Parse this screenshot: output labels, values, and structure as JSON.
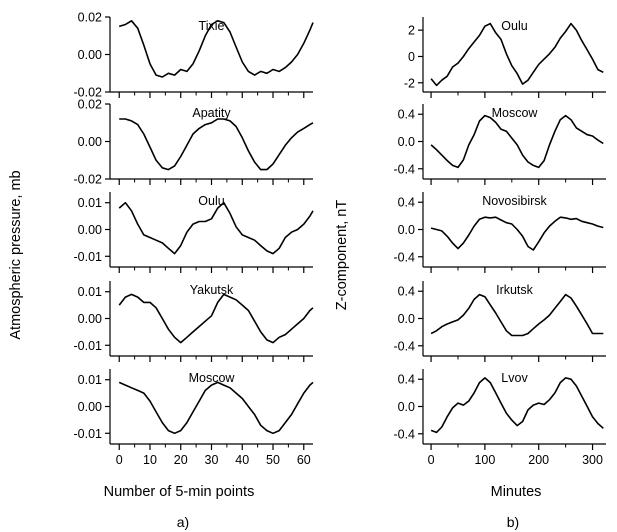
{
  "figure": {
    "left_ylabel": "Atmospheric pressure, mb",
    "left_xlabel": "Number of 5-min points",
    "left_panel_label": "a)",
    "right_ylabel": "Z-component, nT",
    "right_xlabel": "Minutes",
    "right_panel_label": "b)"
  },
  "chart_data": [
    {
      "type": "line",
      "group": "a",
      "station": "Tixie",
      "xlim": [
        -3,
        63
      ],
      "ylim": [
        -0.02,
        0.02
      ],
      "xticks": [
        0,
        10,
        20,
        30,
        40,
        50,
        60
      ],
      "yticks": [
        {
          "v": 0.02,
          "l": "0.02"
        },
        {
          "v": 0.0,
          "l": "0.00"
        },
        {
          "v": -0.02,
          "l": "-0.02"
        }
      ],
      "x": [
        0,
        2,
        4,
        6,
        8,
        10,
        12,
        14,
        16,
        18,
        20,
        22,
        24,
        26,
        28,
        30,
        32,
        34,
        36,
        38,
        40,
        42,
        44,
        46,
        48,
        50,
        52,
        54,
        56,
        58,
        60,
        62,
        63
      ],
      "y": [
        0.015,
        0.016,
        0.018,
        0.014,
        0.005,
        -0.005,
        -0.011,
        -0.012,
        -0.01,
        -0.011,
        -0.008,
        -0.009,
        -0.005,
        0.002,
        0.01,
        0.016,
        0.018,
        0.017,
        0.012,
        0.004,
        -0.004,
        -0.009,
        -0.011,
        -0.009,
        -0.01,
        -0.008,
        -0.009,
        -0.007,
        -0.004,
        0.0,
        0.006,
        0.013,
        0.017
      ]
    },
    {
      "type": "line",
      "group": "a",
      "station": "Apatity",
      "xlim": [
        -3,
        63
      ],
      "ylim": [
        -0.02,
        0.02
      ],
      "xticks": [
        0,
        10,
        20,
        30,
        40,
        50,
        60
      ],
      "yticks": [
        {
          "v": 0.02,
          "l": "0.02"
        },
        {
          "v": 0.0,
          "l": "0.00"
        },
        {
          "v": -0.02,
          "l": "-0.02"
        }
      ],
      "x": [
        0,
        2,
        4,
        6,
        8,
        10,
        12,
        14,
        16,
        18,
        20,
        22,
        24,
        26,
        28,
        30,
        32,
        34,
        36,
        38,
        40,
        42,
        44,
        46,
        48,
        50,
        52,
        54,
        56,
        58,
        60,
        62,
        63
      ],
      "y": [
        0.012,
        0.012,
        0.011,
        0.009,
        0.004,
        -0.003,
        -0.01,
        -0.014,
        -0.015,
        -0.013,
        -0.008,
        -0.002,
        0.004,
        0.007,
        0.009,
        0.01,
        0.012,
        0.012,
        0.011,
        0.008,
        0.002,
        -0.005,
        -0.011,
        -0.015,
        -0.015,
        -0.012,
        -0.007,
        -0.002,
        0.002,
        0.005,
        0.007,
        0.009,
        0.01
      ]
    },
    {
      "type": "line",
      "group": "a",
      "station": "Oulu",
      "xlim": [
        -3,
        63
      ],
      "ylim": [
        -0.014,
        0.014
      ],
      "xticks": [
        0,
        10,
        20,
        30,
        40,
        50,
        60
      ],
      "yticks": [
        {
          "v": 0.01,
          "l": "0.01"
        },
        {
          "v": 0.0,
          "l": "0.00"
        },
        {
          "v": -0.01,
          "l": "-0.01"
        }
      ],
      "x": [
        0,
        2,
        4,
        6,
        8,
        10,
        12,
        14,
        16,
        18,
        20,
        22,
        24,
        26,
        28,
        30,
        32,
        34,
        36,
        38,
        40,
        42,
        44,
        46,
        48,
        50,
        52,
        54,
        56,
        58,
        60,
        62,
        63
      ],
      "y": [
        0.008,
        0.01,
        0.007,
        0.002,
        -0.002,
        -0.003,
        -0.004,
        -0.005,
        -0.007,
        -0.009,
        -0.006,
        -0.001,
        0.002,
        0.003,
        0.003,
        0.004,
        0.008,
        0.01,
        0.006,
        0.001,
        -0.002,
        -0.003,
        -0.004,
        -0.006,
        -0.008,
        -0.009,
        -0.007,
        -0.003,
        -0.001,
        0.0,
        0.002,
        0.005,
        0.007
      ]
    },
    {
      "type": "line",
      "group": "a",
      "station": "Yakutsk",
      "xlim": [
        -3,
        63
      ],
      "ylim": [
        -0.014,
        0.014
      ],
      "xticks": [
        0,
        10,
        20,
        30,
        40,
        50,
        60
      ],
      "yticks": [
        {
          "v": 0.01,
          "l": "0.01"
        },
        {
          "v": 0.0,
          "l": "0.00"
        },
        {
          "v": -0.01,
          "l": "-0.01"
        }
      ],
      "x": [
        0,
        2,
        4,
        6,
        8,
        10,
        12,
        14,
        16,
        18,
        20,
        22,
        24,
        26,
        28,
        30,
        32,
        34,
        36,
        38,
        40,
        42,
        44,
        46,
        48,
        50,
        52,
        54,
        56,
        58,
        60,
        62,
        63
      ],
      "y": [
        0.005,
        0.008,
        0.009,
        0.008,
        0.006,
        0.006,
        0.004,
        0.0,
        -0.004,
        -0.007,
        -0.009,
        -0.007,
        -0.005,
        -0.003,
        -0.001,
        0.001,
        0.006,
        0.009,
        0.008,
        0.007,
        0.005,
        0.003,
        -0.001,
        -0.005,
        -0.008,
        -0.009,
        -0.007,
        -0.006,
        -0.004,
        -0.002,
        0.0,
        0.003,
        0.004
      ]
    },
    {
      "type": "line",
      "group": "a",
      "station": "Moscow",
      "xlim": [
        -3,
        63
      ],
      "ylim": [
        -0.014,
        0.014
      ],
      "xticks": [
        0,
        10,
        20,
        30,
        40,
        50,
        60
      ],
      "xticklabels": [
        "0",
        "10",
        "20",
        "30",
        "40",
        "50",
        "60"
      ],
      "yticks": [
        {
          "v": 0.01,
          "l": "0.01"
        },
        {
          "v": 0.0,
          "l": "0.00"
        },
        {
          "v": -0.01,
          "l": "-0.01"
        }
      ],
      "x": [
        0,
        2,
        4,
        6,
        8,
        10,
        12,
        14,
        16,
        18,
        20,
        22,
        24,
        26,
        28,
        30,
        32,
        34,
        36,
        38,
        40,
        42,
        44,
        46,
        48,
        50,
        52,
        54,
        56,
        58,
        60,
        62,
        63
      ],
      "y": [
        0.009,
        0.008,
        0.007,
        0.006,
        0.005,
        0.002,
        -0.002,
        -0.006,
        -0.009,
        -0.01,
        -0.009,
        -0.006,
        -0.002,
        0.002,
        0.006,
        0.008,
        0.009,
        0.008,
        0.007,
        0.005,
        0.003,
        0.0,
        -0.003,
        -0.007,
        -0.009,
        -0.01,
        -0.009,
        -0.006,
        -0.003,
        0.001,
        0.005,
        0.008,
        0.009
      ]
    },
    {
      "type": "line",
      "group": "b",
      "station": "Oulu",
      "xlim": [
        -15,
        325
      ],
      "ylim": [
        -2.7,
        3.0
      ],
      "xticks": [
        0,
        100,
        200,
        300
      ],
      "yticks": [
        {
          "v": 2,
          "l": "2"
        },
        {
          "v": 0,
          "l": "0"
        },
        {
          "v": -2,
          "l": "-2"
        }
      ],
      "x": [
        0,
        10,
        20,
        30,
        40,
        50,
        60,
        70,
        80,
        90,
        100,
        110,
        120,
        130,
        140,
        150,
        160,
        170,
        180,
        190,
        200,
        210,
        220,
        230,
        240,
        250,
        260,
        270,
        280,
        290,
        300,
        310,
        320
      ],
      "y": [
        -1.7,
        -2.2,
        -1.8,
        -1.5,
        -0.8,
        -0.5,
        0.0,
        0.6,
        1.1,
        1.6,
        2.3,
        2.5,
        1.8,
        1.3,
        0.2,
        -0.7,
        -1.3,
        -2.1,
        -1.8,
        -1.2,
        -0.6,
        -0.2,
        0.2,
        0.7,
        1.4,
        1.9,
        2.5,
        2.0,
        1.2,
        0.5,
        -0.2,
        -1.0,
        -1.2
      ]
    },
    {
      "type": "line",
      "group": "b",
      "station": "Moscow",
      "xlim": [
        -15,
        325
      ],
      "ylim": [
        -0.55,
        0.55
      ],
      "xticks": [
        0,
        100,
        200,
        300
      ],
      "yticks": [
        {
          "v": 0.4,
          "l": "0.4"
        },
        {
          "v": 0.0,
          "l": "0.0"
        },
        {
          "v": -0.4,
          "l": "-0.4"
        }
      ],
      "x": [
        0,
        10,
        20,
        30,
        40,
        50,
        60,
        70,
        80,
        90,
        100,
        110,
        120,
        130,
        140,
        150,
        160,
        170,
        180,
        190,
        200,
        210,
        220,
        230,
        240,
        250,
        260,
        270,
        280,
        290,
        300,
        310,
        320
      ],
      "y": [
        -0.05,
        -0.12,
        -0.2,
        -0.28,
        -0.35,
        -0.38,
        -0.27,
        -0.05,
        0.1,
        0.3,
        0.38,
        0.35,
        0.28,
        0.18,
        0.15,
        0.05,
        -0.05,
        -0.2,
        -0.3,
        -0.35,
        -0.38,
        -0.28,
        -0.05,
        0.15,
        0.32,
        0.38,
        0.32,
        0.2,
        0.15,
        0.1,
        0.08,
        0.02,
        -0.03
      ]
    },
    {
      "type": "line",
      "group": "b",
      "station": "Novosibirsk",
      "xlim": [
        -15,
        325
      ],
      "ylim": [
        -0.55,
        0.55
      ],
      "xticks": [
        0,
        100,
        200,
        300
      ],
      "yticks": [
        {
          "v": 0.4,
          "l": "0.4"
        },
        {
          "v": 0.0,
          "l": "0.0"
        },
        {
          "v": -0.4,
          "l": "-0.4"
        }
      ],
      "x": [
        0,
        10,
        20,
        30,
        40,
        50,
        60,
        70,
        80,
        90,
        100,
        110,
        120,
        130,
        140,
        150,
        160,
        170,
        180,
        190,
        200,
        210,
        220,
        230,
        240,
        250,
        260,
        270,
        280,
        290,
        300,
        310,
        320
      ],
      "y": [
        0.02,
        0.0,
        -0.02,
        -0.1,
        -0.2,
        -0.28,
        -0.2,
        -0.08,
        0.05,
        0.15,
        0.18,
        0.17,
        0.18,
        0.14,
        0.1,
        0.08,
        0.0,
        -0.1,
        -0.25,
        -0.3,
        -0.18,
        -0.05,
        0.05,
        0.12,
        0.18,
        0.17,
        0.15,
        0.16,
        0.12,
        0.1,
        0.08,
        0.05,
        0.03
      ]
    },
    {
      "type": "line",
      "group": "b",
      "station": "Irkutsk",
      "xlim": [
        -15,
        325
      ],
      "ylim": [
        -0.55,
        0.55
      ],
      "xticks": [
        0,
        100,
        200,
        300
      ],
      "yticks": [
        {
          "v": 0.4,
          "l": "0.4"
        },
        {
          "v": 0.0,
          "l": "0.0"
        },
        {
          "v": -0.4,
          "l": "-0.4"
        }
      ],
      "x": [
        0,
        10,
        20,
        30,
        40,
        50,
        60,
        70,
        80,
        90,
        100,
        110,
        120,
        130,
        140,
        150,
        160,
        170,
        180,
        190,
        200,
        210,
        220,
        230,
        240,
        250,
        260,
        270,
        280,
        290,
        300,
        310,
        320
      ],
      "y": [
        -0.22,
        -0.18,
        -0.12,
        -0.08,
        -0.05,
        -0.02,
        0.05,
        0.15,
        0.28,
        0.35,
        0.32,
        0.2,
        0.08,
        -0.05,
        -0.18,
        -0.25,
        -0.25,
        -0.25,
        -0.22,
        -0.15,
        -0.08,
        -0.02,
        0.05,
        0.15,
        0.25,
        0.35,
        0.3,
        0.18,
        0.05,
        -0.08,
        -0.22,
        -0.22,
        -0.22
      ]
    },
    {
      "type": "line",
      "group": "b",
      "station": "Lvov",
      "xlim": [
        -15,
        325
      ],
      "ylim": [
        -0.55,
        0.55
      ],
      "xticks": [
        0,
        100,
        200,
        300
      ],
      "xticklabels": [
        "0",
        "100",
        "200",
        "300"
      ],
      "yticks": [
        {
          "v": 0.4,
          "l": "0.4"
        },
        {
          "v": 0.0,
          "l": "0.0"
        },
        {
          "v": -0.4,
          "l": "-0.4"
        }
      ],
      "x": [
        0,
        10,
        20,
        30,
        40,
        50,
        60,
        70,
        80,
        90,
        100,
        110,
        120,
        130,
        140,
        150,
        160,
        170,
        180,
        190,
        200,
        210,
        220,
        230,
        240,
        250,
        260,
        270,
        280,
        290,
        300,
        310,
        320
      ],
      "y": [
        -0.35,
        -0.38,
        -0.3,
        -0.15,
        -0.02,
        0.05,
        0.02,
        0.08,
        0.2,
        0.35,
        0.42,
        0.35,
        0.2,
        0.05,
        -0.1,
        -0.2,
        -0.28,
        -0.22,
        -0.05,
        0.02,
        0.05,
        0.03,
        0.1,
        0.2,
        0.35,
        0.42,
        0.4,
        0.3,
        0.15,
        0.0,
        -0.15,
        -0.25,
        -0.32
      ]
    }
  ]
}
